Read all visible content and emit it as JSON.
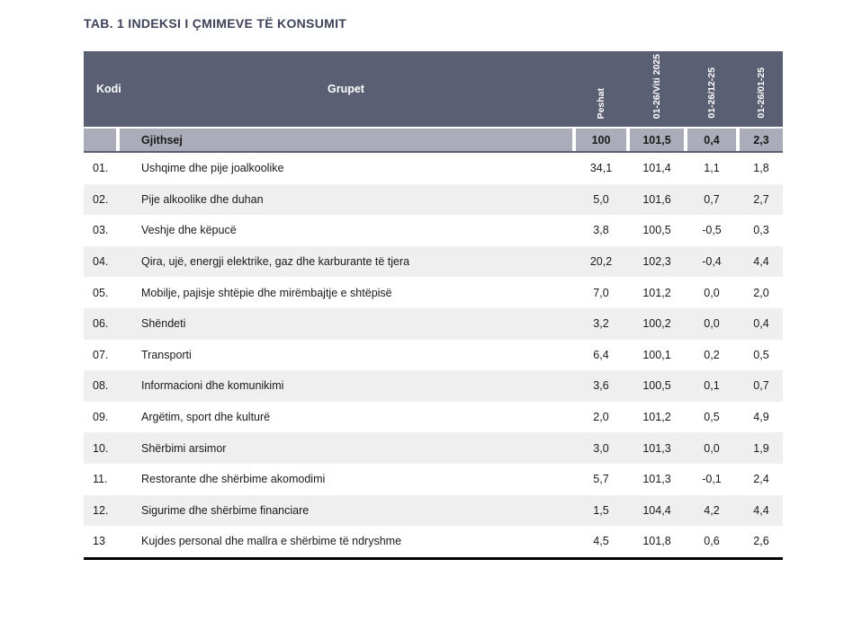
{
  "title": "TAB. 1 INDEKSI I ÇMIMEVE TË KONSUMIT",
  "table": {
    "columns": {
      "kodi": "Kodi",
      "grupet": "Grupet",
      "rotated": [
        "Peshat",
        "01-26/Viti 2025",
        "01-26/12-25",
        "01-26/01-25"
      ]
    },
    "total_row": {
      "grupet": "Gjithsej",
      "values": [
        "100",
        "101,5",
        "0,4",
        "2,3"
      ]
    },
    "rows": [
      {
        "kodi": "01.",
        "grupet": "Ushqime dhe pije joalkoolike",
        "values": [
          "34,1",
          "101,4",
          "1,1",
          "1,8"
        ]
      },
      {
        "kodi": "02.",
        "grupet": "Pije alkoolike dhe duhan",
        "values": [
          "5,0",
          "101,6",
          "0,7",
          "2,7"
        ]
      },
      {
        "kodi": "03.",
        "grupet": "Veshje dhe këpucë",
        "values": [
          "3,8",
          "100,5",
          "-0,5",
          "0,3"
        ]
      },
      {
        "kodi": "04.",
        "grupet": "Qira, ujë, energji elektrike, gaz dhe karburante të tjera",
        "values": [
          "20,2",
          "102,3",
          "-0,4",
          "4,4"
        ]
      },
      {
        "kodi": "05.",
        "grupet": "Mobilje, pajisje shtëpie dhe mirëmbajtje e shtëpisë",
        "values": [
          "7,0",
          "101,2",
          "0,0",
          "2,0"
        ]
      },
      {
        "kodi": "06.",
        "grupet": "Shëndeti",
        "values": [
          "3,2",
          "100,2",
          "0,0",
          "0,4"
        ]
      },
      {
        "kodi": "07.",
        "grupet": "Transporti",
        "values": [
          "6,4",
          "100,1",
          "0,2",
          "0,5"
        ]
      },
      {
        "kodi": "08.",
        "grupet": "Informacioni dhe komunikimi",
        "values": [
          "3,6",
          "100,5",
          "0,1",
          "0,7"
        ]
      },
      {
        "kodi": "09.",
        "grupet": "Argëtim, sport dhe kulturë",
        "values": [
          "2,0",
          "101,2",
          "0,5",
          "4,9"
        ]
      },
      {
        "kodi": "10.",
        "grupet": "Shërbimi arsimor",
        "values": [
          "3,0",
          "101,3",
          "0,0",
          "1,9"
        ]
      },
      {
        "kodi": "11.",
        "grupet": "Restorante dhe shërbime akomodimi",
        "values": [
          "5,7",
          "101,3",
          "-0,1",
          "2,4"
        ]
      },
      {
        "kodi": "12.",
        "grupet": "Sigurime dhe shërbime financiare",
        "values": [
          "1,5",
          "104,4",
          "4,2",
          "4,4"
        ]
      },
      {
        "kodi": "13",
        "grupet": "Kujdes personal dhe mallra e shërbime të ndryshme",
        "values": [
          "4,5",
          "101,8",
          "0,6",
          "2,6"
        ]
      }
    ]
  },
  "colors": {
    "header_bg": "#5b5f73",
    "header_text": "#ffffff",
    "total_bg": "#abacba",
    "stripe": "#efefef",
    "title": "#3e425a",
    "divider": "#5b5f73",
    "bottom_border": "#000000",
    "body_text": "#1a1a1a"
  }
}
